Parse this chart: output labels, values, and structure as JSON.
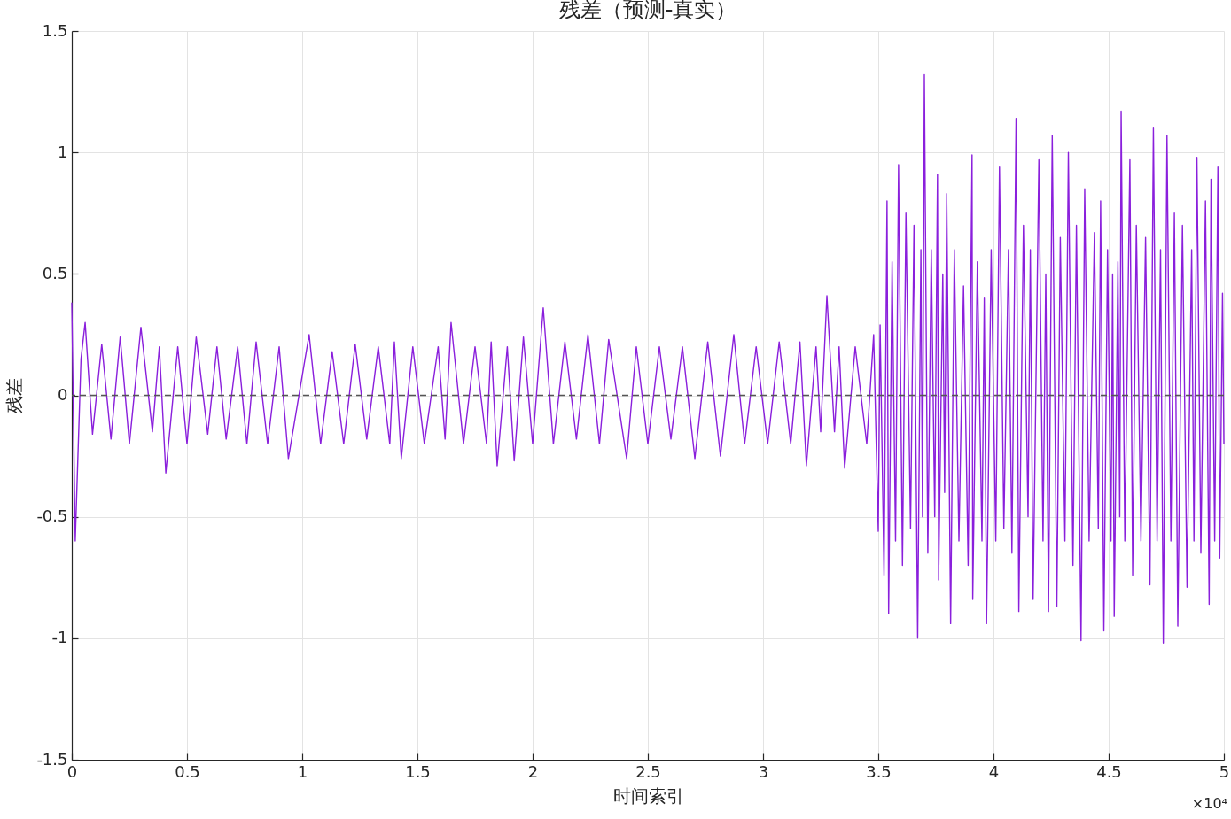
{
  "chart_data": {
    "type": "line",
    "title": "残差（预测-真实）",
    "xlabel": "时间索引",
    "ylabel": "残差",
    "annotations": [
      "×10⁴"
    ],
    "x": [
      0,
      0.015,
      0.04,
      0.058,
      0.09,
      0.13,
      0.17,
      0.21,
      0.25,
      0.3,
      0.35,
      0.38,
      0.408,
      0.46,
      0.5,
      0.54,
      0.59,
      0.63,
      0.67,
      0.72,
      0.76,
      0.8,
      0.85,
      0.9,
      0.94,
      1.03,
      1.08,
      1.13,
      1.18,
      1.23,
      1.28,
      1.33,
      1.38,
      1.4,
      1.43,
      1.48,
      1.53,
      1.59,
      1.62,
      1.646,
      1.7,
      1.75,
      1.8,
      1.82,
      1.846,
      1.89,
      1.92,
      1.96,
      2.0,
      2.046,
      2.09,
      2.14,
      2.19,
      2.24,
      2.29,
      2.33,
      2.408,
      2.45,
      2.5,
      2.55,
      2.6,
      2.65,
      2.704,
      2.76,
      2.815,
      2.873,
      2.92,
      2.97,
      3.02,
      3.07,
      3.12,
      3.16,
      3.188,
      3.23,
      3.25,
      3.277,
      3.31,
      3.33,
      3.354,
      3.4,
      3.45,
      3.48,
      3.5,
      3.508,
      3.525,
      3.538,
      3.545,
      3.56,
      3.575,
      3.588,
      3.605,
      3.62,
      3.64,
      3.655,
      3.671,
      3.685,
      3.692,
      3.7,
      3.715,
      3.73,
      3.745,
      3.757,
      3.762,
      3.78,
      3.788,
      3.797,
      3.814,
      3.83,
      3.85,
      3.87,
      3.89,
      3.907,
      3.91,
      3.93,
      3.95,
      3.96,
      3.97,
      3.99,
      4.01,
      4.026,
      4.045,
      4.065,
      4.08,
      4.098,
      4.11,
      4.13,
      4.15,
      4.16,
      4.172,
      4.197,
      4.215,
      4.227,
      4.239,
      4.255,
      4.275,
      4.29,
      4.31,
      4.325,
      4.345,
      4.36,
      4.38,
      4.396,
      4.415,
      4.438,
      4.455,
      4.465,
      4.479,
      4.495,
      4.51,
      4.517,
      4.524,
      4.54,
      4.548,
      4.554,
      4.57,
      4.592,
      4.604,
      4.62,
      4.64,
      4.66,
      4.679,
      4.694,
      4.71,
      4.725,
      4.737,
      4.753,
      4.77,
      4.785,
      4.8,
      4.82,
      4.84,
      4.86,
      4.87,
      4.883,
      4.9,
      4.92,
      4.936,
      4.944,
      4.96,
      4.974,
      4.982,
      4.994,
      5
    ],
    "series": [
      {
        "color": "#8a1fdc",
        "values": [
          0.38,
          -0.6,
          0.15,
          0.3,
          -0.16,
          0.21,
          -0.18,
          0.24,
          -0.2,
          0.28,
          -0.15,
          0.2,
          -0.32,
          0.2,
          -0.2,
          0.24,
          -0.16,
          0.2,
          -0.18,
          0.2,
          -0.2,
          0.22,
          -0.2,
          0.2,
          -0.26,
          0.25,
          -0.2,
          0.18,
          -0.2,
          0.21,
          -0.18,
          0.2,
          -0.2,
          0.22,
          -0.26,
          0.2,
          -0.2,
          0.2,
          -0.18,
          0.3,
          -0.2,
          0.2,
          -0.2,
          0.22,
          -0.29,
          0.2,
          -0.27,
          0.24,
          -0.2,
          0.36,
          -0.2,
          0.22,
          -0.18,
          0.25,
          -0.2,
          0.23,
          -0.26,
          0.2,
          -0.2,
          0.2,
          -0.18,
          0.2,
          -0.26,
          0.22,
          -0.25,
          0.25,
          -0.2,
          0.2,
          -0.2,
          0.22,
          -0.2,
          0.22,
          -0.29,
          0.2,
          -0.15,
          0.41,
          -0.15,
          0.2,
          -0.3,
          0.2,
          -0.2,
          0.25,
          -0.56,
          0.29,
          -0.74,
          0.8,
          -0.9,
          0.55,
          -0.6,
          0.95,
          -0.7,
          0.75,
          -0.55,
          0.7,
          -1.0,
          0.6,
          -0.5,
          1.32,
          -0.65,
          0.6,
          -0.5,
          0.91,
          -0.76,
          0.5,
          -0.4,
          0.83,
          -0.94,
          0.6,
          -0.6,
          0.45,
          -0.7,
          0.99,
          -0.84,
          0.55,
          -0.6,
          0.4,
          -0.94,
          0.6,
          -0.6,
          0.94,
          -0.55,
          0.6,
          -0.65,
          1.14,
          -0.89,
          0.7,
          -0.5,
          0.6,
          -0.84,
          0.97,
          -0.6,
          0.5,
          -0.89,
          1.07,
          -0.87,
          0.65,
          -0.6,
          1.0,
          -0.7,
          0.7,
          -1.01,
          0.85,
          -0.6,
          0.67,
          -0.55,
          0.8,
          -0.97,
          0.6,
          -0.6,
          0.5,
          -0.91,
          0.55,
          -0.5,
          1.17,
          -0.6,
          0.97,
          -0.74,
          0.7,
          -0.6,
          0.65,
          -0.78,
          1.1,
          -0.6,
          0.6,
          -1.02,
          1.07,
          -0.6,
          0.75,
          -0.95,
          0.7,
          -0.79,
          0.6,
          -0.6,
          0.98,
          -0.65,
          0.8,
          -0.86,
          0.89,
          -0.6,
          0.94,
          -0.67,
          0.42,
          -0.2
        ]
      }
    ],
    "xlim": [
      0,
      5
    ],
    "xticks": [
      0,
      0.5,
      1,
      1.5,
      2,
      2.5,
      3,
      3.5,
      4,
      4.5,
      5
    ],
    "ylim": [
      -1.5,
      1.5
    ],
    "yticks": [
      -1.5,
      -1,
      -0.5,
      0,
      0.5,
      1,
      1.5
    ],
    "grid": true,
    "line_style": "solid",
    "ref_lines": [
      {
        "axis": "y",
        "value": 0,
        "color": "#555555",
        "line_style": "dashed"
      }
    ]
  }
}
